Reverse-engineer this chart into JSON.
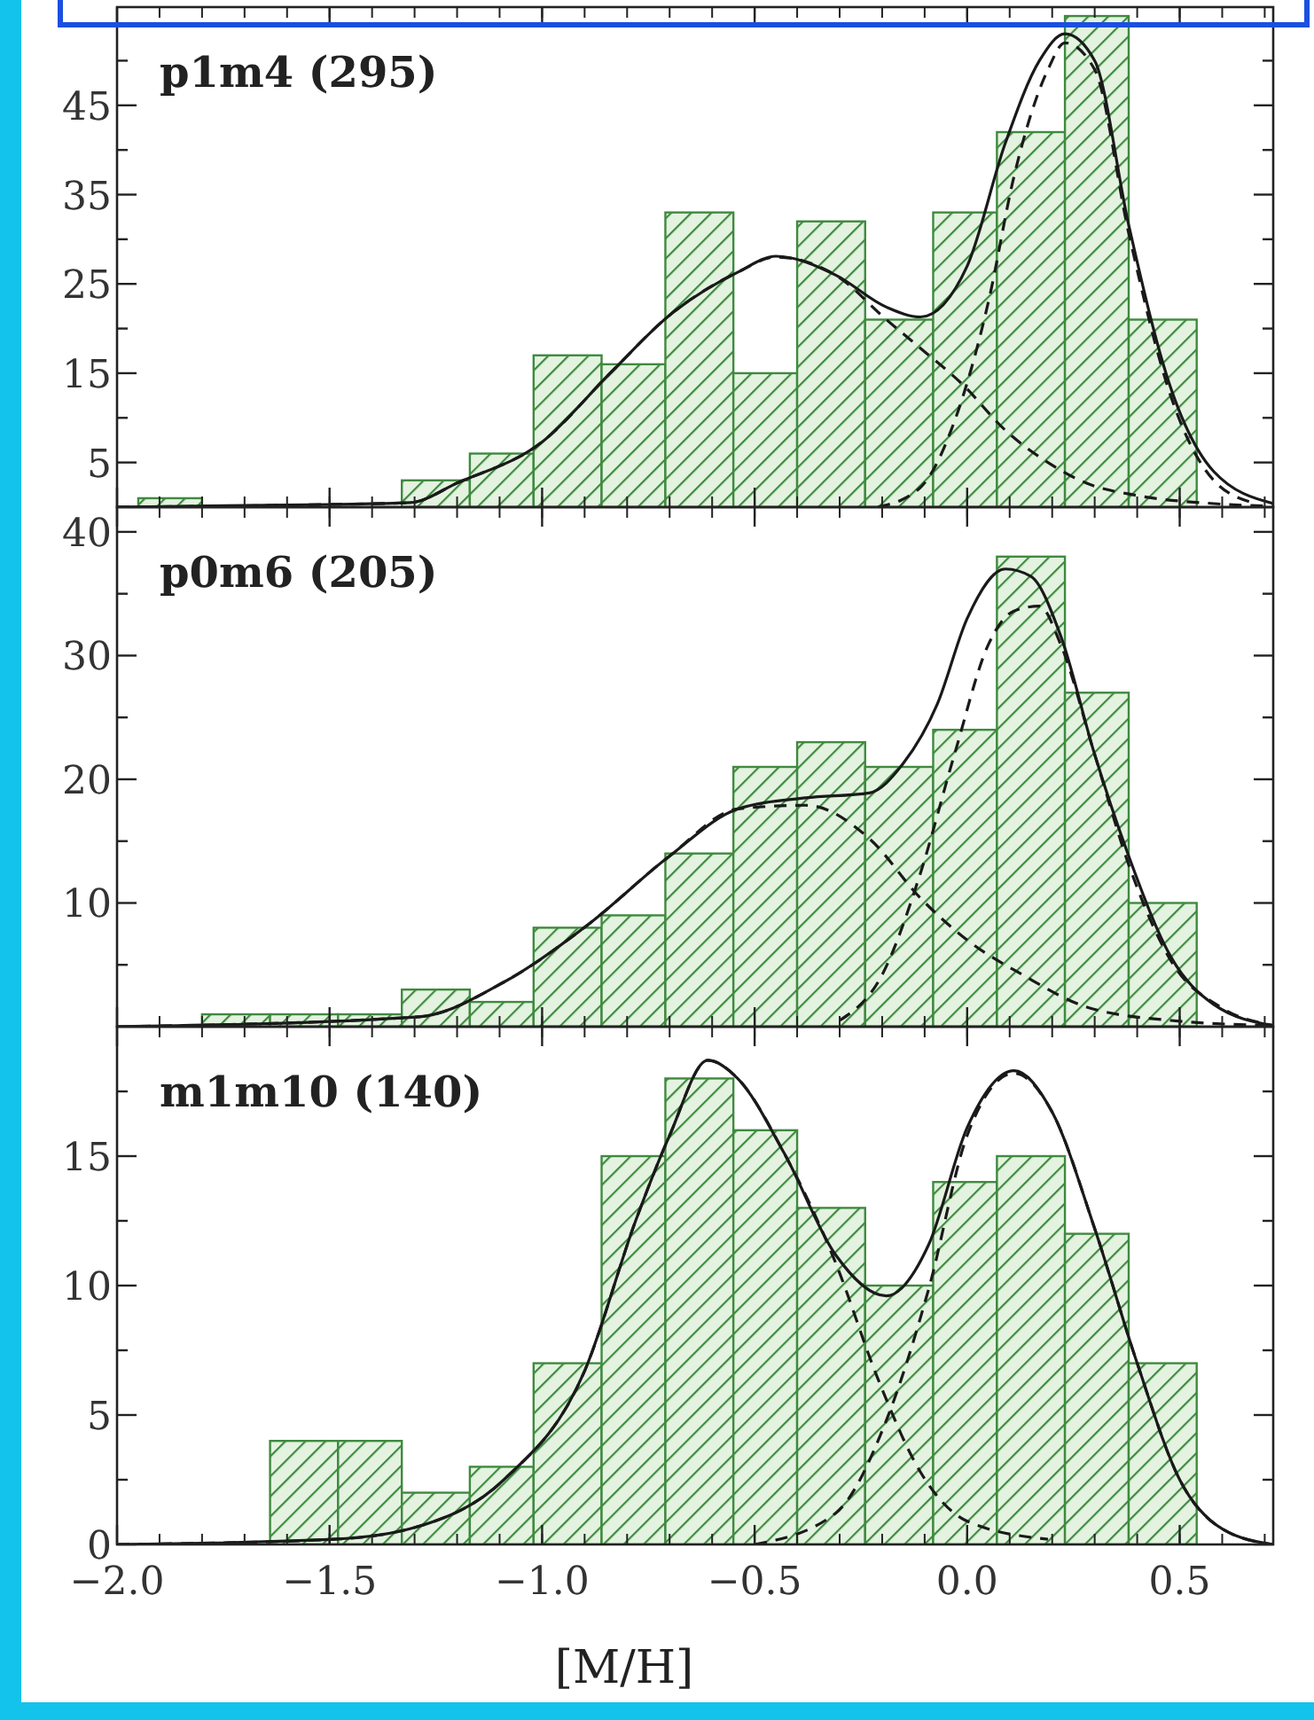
{
  "chart_data": [
    {
      "type": "histogram",
      "title": "p1m4 (295)",
      "color": "#3f8a3f",
      "bins": [
        -1.95,
        -1.8,
        -1.33,
        -1.17,
        -1.02,
        -0.86,
        -0.71,
        -0.55,
        -0.4,
        -0.24,
        -0.08,
        0.07,
        0.23,
        0.38,
        0.54
      ],
      "values": [
        1,
        0,
        3,
        6,
        17,
        16,
        33,
        15,
        32,
        21,
        33,
        42,
        55,
        21
      ],
      "series": [
        {
          "type": "line",
          "color": "#1a1a1a",
          "line_style": "solid",
          "x": [
            -2.0,
            -1.5,
            -1.31,
            -1.2,
            -1.0,
            -0.84,
            -0.7,
            -0.54,
            -0.45,
            -0.31,
            -0.19,
            -0.11,
            0.0,
            0.09,
            0.17,
            0.23,
            0.3,
            0.38,
            0.48,
            0.58,
            0.72
          ],
          "values": [
            0,
            0.3,
            0.5,
            2.7,
            7.3,
            15,
            21.5,
            26.3,
            28.1,
            26,
            22.4,
            21.3,
            27,
            40.8,
            50,
            53,
            50,
            31.6,
            13.2,
            4,
            0.4
          ]
        },
        {
          "type": "line",
          "color": "#1a1a1a",
          "line_style": "dashed",
          "x": [
            -2.0,
            -1.5,
            -1.31,
            -1.2,
            -1.0,
            -0.84,
            -0.7,
            -0.54,
            -0.45,
            -0.31,
            -0.19,
            -0.11,
            -0.01,
            0.09,
            0.19,
            0.28,
            0.4,
            0.58,
            0.72
          ],
          "values": [
            0,
            0.3,
            0.5,
            2.7,
            7.3,
            15,
            21.5,
            26.3,
            28,
            26,
            21,
            17.8,
            13.7,
            8.6,
            5,
            2.7,
            1.3,
            0.4,
            0.1
          ]
        },
        {
          "type": "line",
          "color": "#1a1a1a",
          "line_style": "dashed",
          "x": [
            -0.21,
            -0.11,
            -0.03,
            0.05,
            0.11,
            0.19,
            0.23,
            0.3,
            0.38,
            0.48,
            0.58,
            0.68
          ],
          "values": [
            0,
            2.2,
            9.6,
            23,
            37,
            49,
            52,
            49,
            30.7,
            12.3,
            3,
            0.4
          ]
        }
      ],
      "xlim": [
        -2.0,
        0.72
      ],
      "xticks": [
        {
          "value": -2.0,
          "label": null
        },
        {
          "value": -1.5,
          "label": null
        },
        {
          "value": -1.0,
          "label": null
        },
        {
          "value": -0.5,
          "label": null
        },
        {
          "value": 0.0,
          "label": null
        },
        {
          "value": 0.5,
          "label": null
        }
      ],
      "ylim": [
        0,
        56
      ],
      "yticks": [
        5,
        {
          "value": 10,
          "label": null
        },
        15,
        {
          "value": 20,
          "label": null
        },
        25,
        {
          "value": 30,
          "label": null
        },
        35,
        {
          "value": 40,
          "label": null
        },
        45,
        {
          "value": 50,
          "label": null
        }
      ],
      "tick_labels": "y"
    },
    {
      "type": "histogram",
      "title": "p0m6 (205)",
      "color": "#3f8a3f",
      "bins": [
        -1.8,
        -1.64,
        -1.48,
        -1.33,
        -1.17,
        -1.02,
        -0.86,
        -0.71,
        -0.55,
        -0.4,
        -0.24,
        -0.08,
        0.07,
        0.23,
        0.38,
        0.54
      ],
      "values": [
        1,
        1,
        1,
        3,
        2,
        8,
        9,
        14,
        21,
        23,
        21,
        24,
        38,
        27,
        10
      ],
      "series": [
        {
          "type": "line",
          "color": "#1a1a1a",
          "line_style": "solid",
          "x": [
            -2.0,
            -1.29,
            -1.09,
            -0.89,
            -0.7,
            -0.54,
            -0.38,
            -0.23,
            -0.15,
            -0.07,
            0.0,
            0.09,
            0.15,
            0.22,
            0.3,
            0.38,
            0.48,
            0.58,
            0.72
          ],
          "values": [
            0,
            0.8,
            3.6,
            8.3,
            13.8,
            17.6,
            18.5,
            18.9,
            21.3,
            26.1,
            33,
            37,
            36.4,
            31.6,
            22,
            13.8,
            5.6,
            1.8,
            0.1
          ]
        },
        {
          "type": "line",
          "color": "#1a1a1a",
          "line_style": "dashed",
          "x": [
            -2.0,
            -1.29,
            -1.09,
            -0.89,
            -0.7,
            -0.54,
            -0.38,
            -0.23,
            -0.11,
            0.0,
            0.13,
            0.28,
            0.48,
            0.72
          ],
          "values": [
            0,
            0.8,
            3.6,
            8.3,
            13.8,
            17.6,
            17.9,
            15.2,
            10.4,
            7,
            4.2,
            1.6,
            0.5,
            0.1
          ]
        },
        {
          "type": "line",
          "color": "#1a1a1a",
          "line_style": "dashed",
          "x": [
            -0.3,
            -0.2,
            -0.11,
            -0.03,
            0.05,
            0.11,
            0.17,
            0.22,
            0.3,
            0.38,
            0.48,
            0.6,
            0.72
          ],
          "values": [
            0.5,
            4.2,
            12.4,
            22,
            30.9,
            33.6,
            34,
            30.9,
            22,
            13.1,
            5.3,
            1.5,
            0.1
          ]
        }
      ],
      "xlim": [
        -2.0,
        0.72
      ],
      "xticks": [
        {
          "value": -2.0,
          "label": null
        },
        {
          "value": -1.5,
          "label": null
        },
        {
          "value": -1.0,
          "label": null
        },
        {
          "value": -0.5,
          "label": null
        },
        {
          "value": 0.0,
          "label": null
        },
        {
          "value": 0.5,
          "label": null
        }
      ],
      "ylim": [
        0,
        42
      ],
      "yticks": [
        {
          "value": 5,
          "label": null
        },
        10,
        {
          "value": 15,
          "label": null
        },
        20,
        {
          "value": 25,
          "label": null
        },
        30,
        {
          "value": 35,
          "label": null
        },
        40
      ],
      "tick_labels": "y"
    },
    {
      "type": "histogram",
      "title": "m1m10 (140)",
      "xlabel": "[M/H]",
      "color": "#3f8a3f",
      "bins": [
        -1.64,
        -1.48,
        -1.33,
        -1.17,
        -1.02,
        -0.86,
        -0.71,
        -0.55,
        -0.4,
        -0.24,
        -0.08,
        0.07,
        0.23,
        0.38,
        0.54
      ],
      "values": [
        4,
        4,
        2,
        3,
        7,
        15,
        18,
        16,
        13,
        10,
        14,
        15,
        12,
        7
      ],
      "series": [
        {
          "type": "line",
          "color": "#1a1a1a",
          "line_style": "solid",
          "x": [
            -2.0,
            -1.49,
            -1.29,
            -1.09,
            -0.9,
            -0.78,
            -0.7,
            -0.61,
            -0.54,
            -0.43,
            -0.31,
            -0.19,
            -0.09,
            0.0,
            0.11,
            0.2,
            0.3,
            0.4,
            0.5,
            0.6,
            0.72
          ],
          "values": [
            0,
            0.2,
            0.7,
            2.5,
            6.7,
            12.5,
            15.8,
            18.7,
            18,
            15.1,
            11.2,
            9.6,
            11.6,
            16.1,
            18.3,
            16.7,
            12.2,
            7,
            2.5,
            0.6,
            0
          ]
        },
        {
          "type": "line",
          "color": "#1a1a1a",
          "line_style": "dashed",
          "x": [
            -2.0,
            -1.49,
            -1.29,
            -1.09,
            -0.9,
            -0.78,
            -0.7,
            -0.61,
            -0.54,
            -0.43,
            -0.31,
            -0.21,
            -0.11,
            0.0,
            0.19
          ],
          "values": [
            0,
            0.2,
            0.7,
            2.5,
            6.7,
            12.5,
            15.8,
            18.7,
            18,
            15.1,
            10.9,
            6.4,
            2.8,
            0.9,
            0.2
          ]
        },
        {
          "type": "line",
          "color": "#1a1a1a",
          "line_style": "dashed",
          "x": [
            -0.5,
            -0.31,
            -0.19,
            -0.09,
            0.0,
            0.11,
            0.2,
            0.3,
            0.4,
            0.5,
            0.6,
            0.72
          ],
          "values": [
            0,
            1.2,
            4.8,
            9.9,
            15.8,
            18.2,
            16.7,
            12.2,
            7,
            2.5,
            0.6,
            0
          ]
        }
      ],
      "xlim": [
        -2.0,
        0.72
      ],
      "xticks": [
        {
          "value": -2.0,
          "label": "−2.0"
        },
        {
          "value": -1.5,
          "label": "−1.5"
        },
        {
          "value": -1.0,
          "label": "−1.0"
        },
        {
          "value": -0.5,
          "label": "−0.5"
        },
        {
          "value": 0.0,
          "label": "0.0"
        },
        0.5
      ],
      "ylim": [
        0,
        20
      ],
      "yticks": [
        0,
        {
          "value": 2.5,
          "label": null
        },
        5,
        {
          "value": 7.5,
          "label": null
        },
        10,
        {
          "value": 12.5,
          "label": null
        },
        15,
        {
          "value": 17.5,
          "label": null
        }
      ]
    }
  ]
}
